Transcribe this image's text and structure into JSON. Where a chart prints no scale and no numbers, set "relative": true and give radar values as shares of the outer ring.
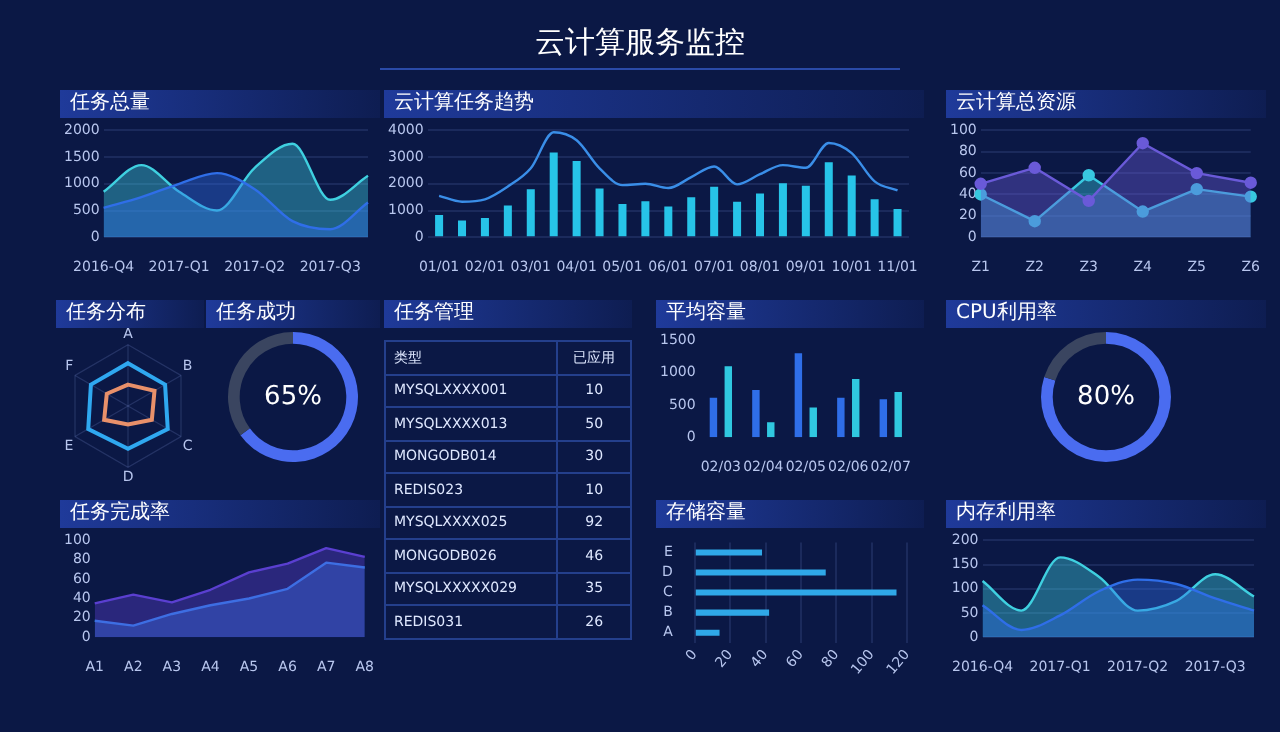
{
  "chart_data": [
    {
      "type": "other",
      "title": "云计算服务监控"
    },
    {
      "type": "line",
      "title": "任务总量",
      "categories": [
        "2016-Q4",
        null,
        "2017-Q1",
        null,
        "2017-Q2",
        null,
        "2017-Q3",
        null
      ],
      "ylim": [
        0,
        2000
      ],
      "yticks": [
        0,
        500,
        1000,
        1500,
        2000
      ],
      "grid": "y",
      "marker": "none",
      "series": [
        {
          "type": "area",
          "color": "#2f6ee8",
          "values": [
            550,
            750,
            1000,
            1200,
            900,
            300,
            150,
            650
          ]
        },
        {
          "type": "area",
          "color": "#3fd0e0",
          "values": [
            850,
            1350,
            850,
            500,
            1300,
            1750,
            700,
            1150
          ]
        }
      ]
    },
    {
      "type": "bar",
      "title": "云计算任务趋势",
      "categories": [
        "01/01",
        null,
        "02/01",
        null,
        "03/01",
        null,
        "04/01",
        null,
        "05/01",
        null,
        "06/01",
        null,
        "07/01",
        null,
        "08/01",
        null,
        "09/01",
        null,
        "10/01",
        null,
        "11/01"
      ],
      "ylim": [
        0,
        4000
      ],
      "yticks": [
        0,
        1000,
        2000,
        3000,
        4000
      ],
      "grid": "y",
      "marker": "none",
      "series": [
        {
          "type": "bar",
          "color": "#27c4e8",
          "values": [
            830,
            630,
            720,
            1190,
            1800,
            3170,
            2850,
            1820,
            1240,
            1350,
            1150,
            1500,
            1890,
            1330,
            1640,
            2020,
            1930,
            2810,
            2310,
            1420,
            1060
          ]
        },
        {
          "type": "line",
          "color": "#3a8ee8",
          "values": [
            1550,
            1330,
            1420,
            1900,
            2580,
            3930,
            3630,
            2580,
            1950,
            2000,
            1840,
            2250,
            2650,
            1980,
            2360,
            2700,
            2600,
            3530,
            3150,
            2090,
            1750
          ]
        }
      ]
    },
    {
      "type": "area",
      "title": "云计算总资源",
      "categories": [
        "Z1",
        "Z2",
        "Z3",
        "Z4",
        "Z5",
        "Z6"
      ],
      "ylim": [
        0,
        100
      ],
      "yticks": [
        0,
        20,
        40,
        60,
        80,
        100
      ],
      "grid": "y",
      "marker": "circle",
      "series": [
        {
          "color": "#6a5ad8",
          "values": [
            50,
            65,
            34,
            88,
            60,
            51
          ]
        },
        {
          "color": "#38c8e0",
          "values": [
            40,
            15,
            58,
            24,
            45,
            38
          ]
        }
      ]
    },
    {
      "type": "radar",
      "title": "任务分布",
      "categories": [
        "A",
        "B",
        "C",
        "D",
        "E",
        "F"
      ],
      "relative": true,
      "marker": "none",
      "series": [
        {
          "color": "#2fa8f0",
          "values": [
            0.7,
            0.7,
            0.75,
            0.7,
            0.75,
            0.7
          ]
        },
        {
          "color": "#e8906a",
          "values": [
            0.35,
            0.5,
            0.45,
            0.3,
            0.45,
            0.4
          ]
        }
      ]
    },
    {
      "type": "donut",
      "title": "任务成功",
      "categories": [
        null,
        null
      ],
      "values": [
        65,
        35
      ],
      "colors": [
        "#4a6cf0",
        "#3a4560"
      ],
      "value_labels": [
        "65%",
        null
      ]
    },
    {
      "type": "other",
      "title": "任务管理",
      "annotations": [
        "类型",
        "已应用"
      ],
      "categories": [
        "MYSQLXXXX001",
        "MYSQLXXXX013",
        "MONGODB014",
        "REDIS023",
        "MYSQLXXXX025",
        "MONGODB026",
        "MYSQLXXXXX029",
        "REDIS031"
      ],
      "values": [
        10,
        50,
        30,
        10,
        92,
        46,
        35,
        26
      ],
      "data_labels": true
    },
    {
      "type": "bar",
      "title": "平均容量",
      "categories": [
        "02/03",
        "02/04",
        "02/05",
        "02/06",
        "02/07"
      ],
      "ylim": [
        0,
        1500
      ],
      "yticks": [
        0,
        500,
        1000,
        1500
      ],
      "series": [
        {
          "color": "#2f6ee8",
          "values": [
            610,
            730,
            1300,
            610,
            590
          ]
        },
        {
          "color": "#30c8e0",
          "values": [
            1100,
            230,
            460,
            900,
            700
          ]
        }
      ]
    },
    {
      "type": "donut",
      "title": "CPU利用率",
      "categories": [
        null,
        null
      ],
      "values": [
        80,
        20
      ],
      "colors": [
        "#4a6cf0",
        "#3a4560"
      ],
      "value_labels": [
        "80%",
        null
      ]
    },
    {
      "type": "area",
      "title": "任务完成率",
      "categories": [
        "A1",
        "A2",
        "A3",
        "A4",
        "A5",
        "A6",
        "A7",
        "A8"
      ],
      "ylim": [
        0,
        100
      ],
      "yticks": [
        0,
        20,
        40,
        60,
        80,
        100
      ],
      "marker": "none",
      "series": [
        {
          "color": "#5a3fd0",
          "values": [
            35,
            44,
            36,
            49,
            67,
            76,
            92,
            83
          ]
        },
        {
          "color": "#2a8ef0",
          "values": [
            17,
            12,
            24,
            33,
            40,
            50,
            77,
            72
          ]
        }
      ]
    },
    {
      "type": "bar",
      "title": "存储容量",
      "orientation": "horizontal",
      "categories": [
        "E",
        "D",
        "C",
        "B",
        "A"
      ],
      "xlim": [
        0,
        120
      ],
      "xticks": [
        0,
        20,
        40,
        60,
        80,
        100,
        120
      ],
      "grid": "x",
      "values": [
        38,
        74,
        114,
        42,
        14
      ],
      "color": "#2fa8e8"
    },
    {
      "type": "line",
      "title": "内存利用率",
      "categories": [
        "2016-Q4",
        null,
        "2017-Q1",
        null,
        "2017-Q2",
        null,
        "2017-Q3",
        null
      ],
      "ylim": [
        0,
        200
      ],
      "yticks": [
        0,
        50,
        100,
        150,
        200
      ],
      "grid": "y",
      "marker": "none",
      "series": [
        {
          "type": "area",
          "color": "#2f6ee8",
          "values": [
            66,
            15,
            45,
            95,
            119,
            110,
            80,
            55
          ]
        },
        {
          "type": "area",
          "color": "#3fd0e0",
          "values": [
            116,
            55,
            165,
            125,
            55,
            75,
            130,
            84
          ]
        }
      ]
    }
  ]
}
